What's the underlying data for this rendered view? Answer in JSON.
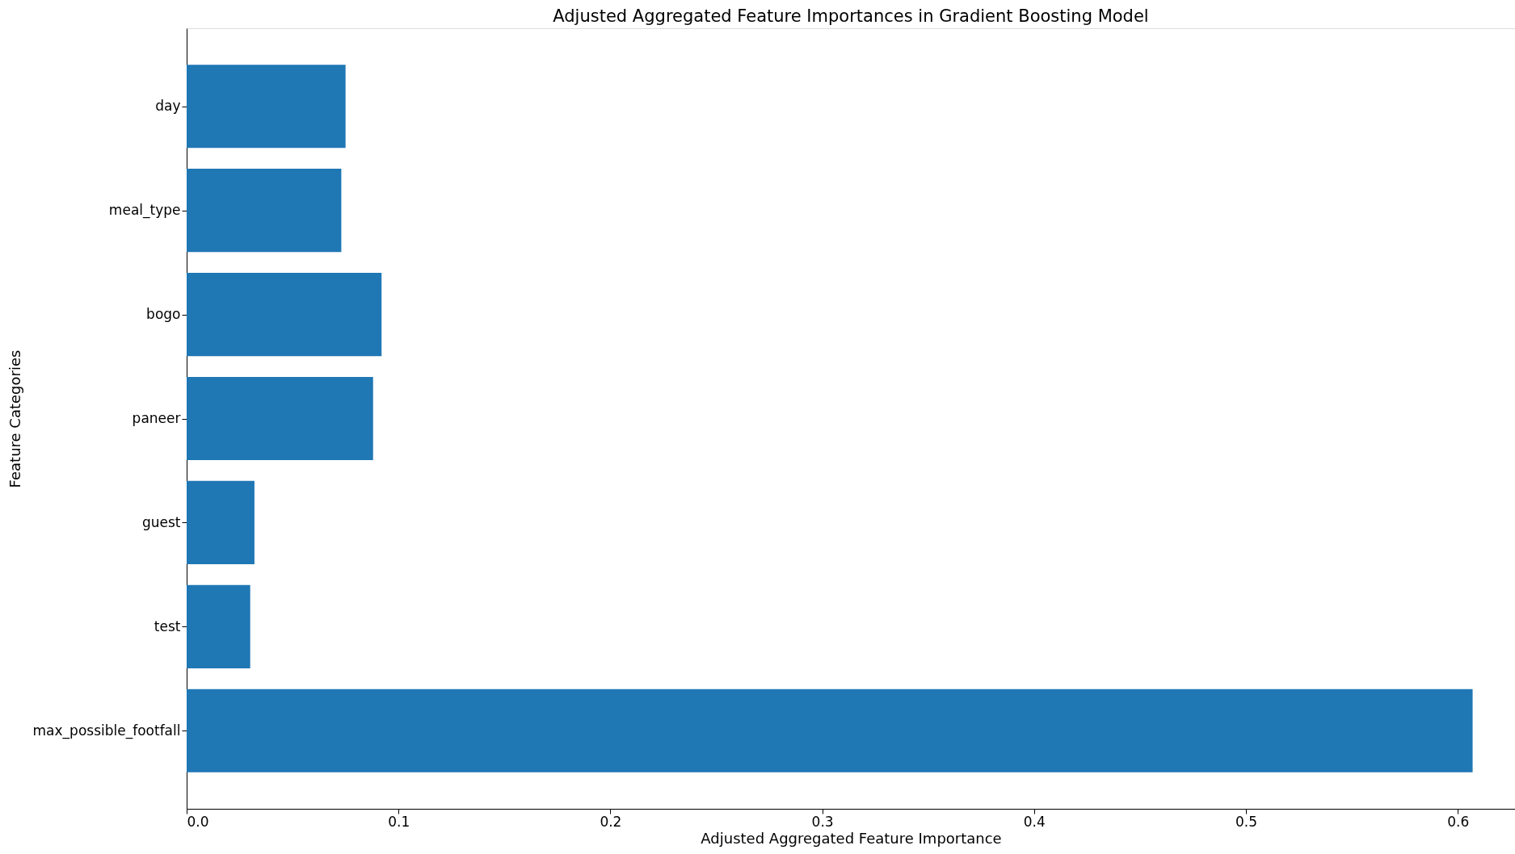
{
  "chart_data": {
    "type": "bar",
    "orientation": "horizontal",
    "title": "Adjusted Aggregated Feature Importances in Gradient Boosting Model",
    "xlabel": "Adjusted Aggregated Feature Importance",
    "ylabel": "Feature Categories",
    "categories": [
      "day",
      "meal_type",
      "bogo",
      "paneer",
      "guest",
      "test",
      "max_possible_footfall"
    ],
    "values": [
      0.075,
      0.073,
      0.092,
      0.088,
      0.032,
      0.03,
      0.607
    ],
    "color": "#1f77b4",
    "xlim": [
      0,
      0.627
    ],
    "xticks": [
      {
        "value": 0,
        "label": "0.0"
      },
      0.1,
      0.2,
      0.3,
      0.4,
      0.5,
      0.6
    ],
    "grid": false
  }
}
